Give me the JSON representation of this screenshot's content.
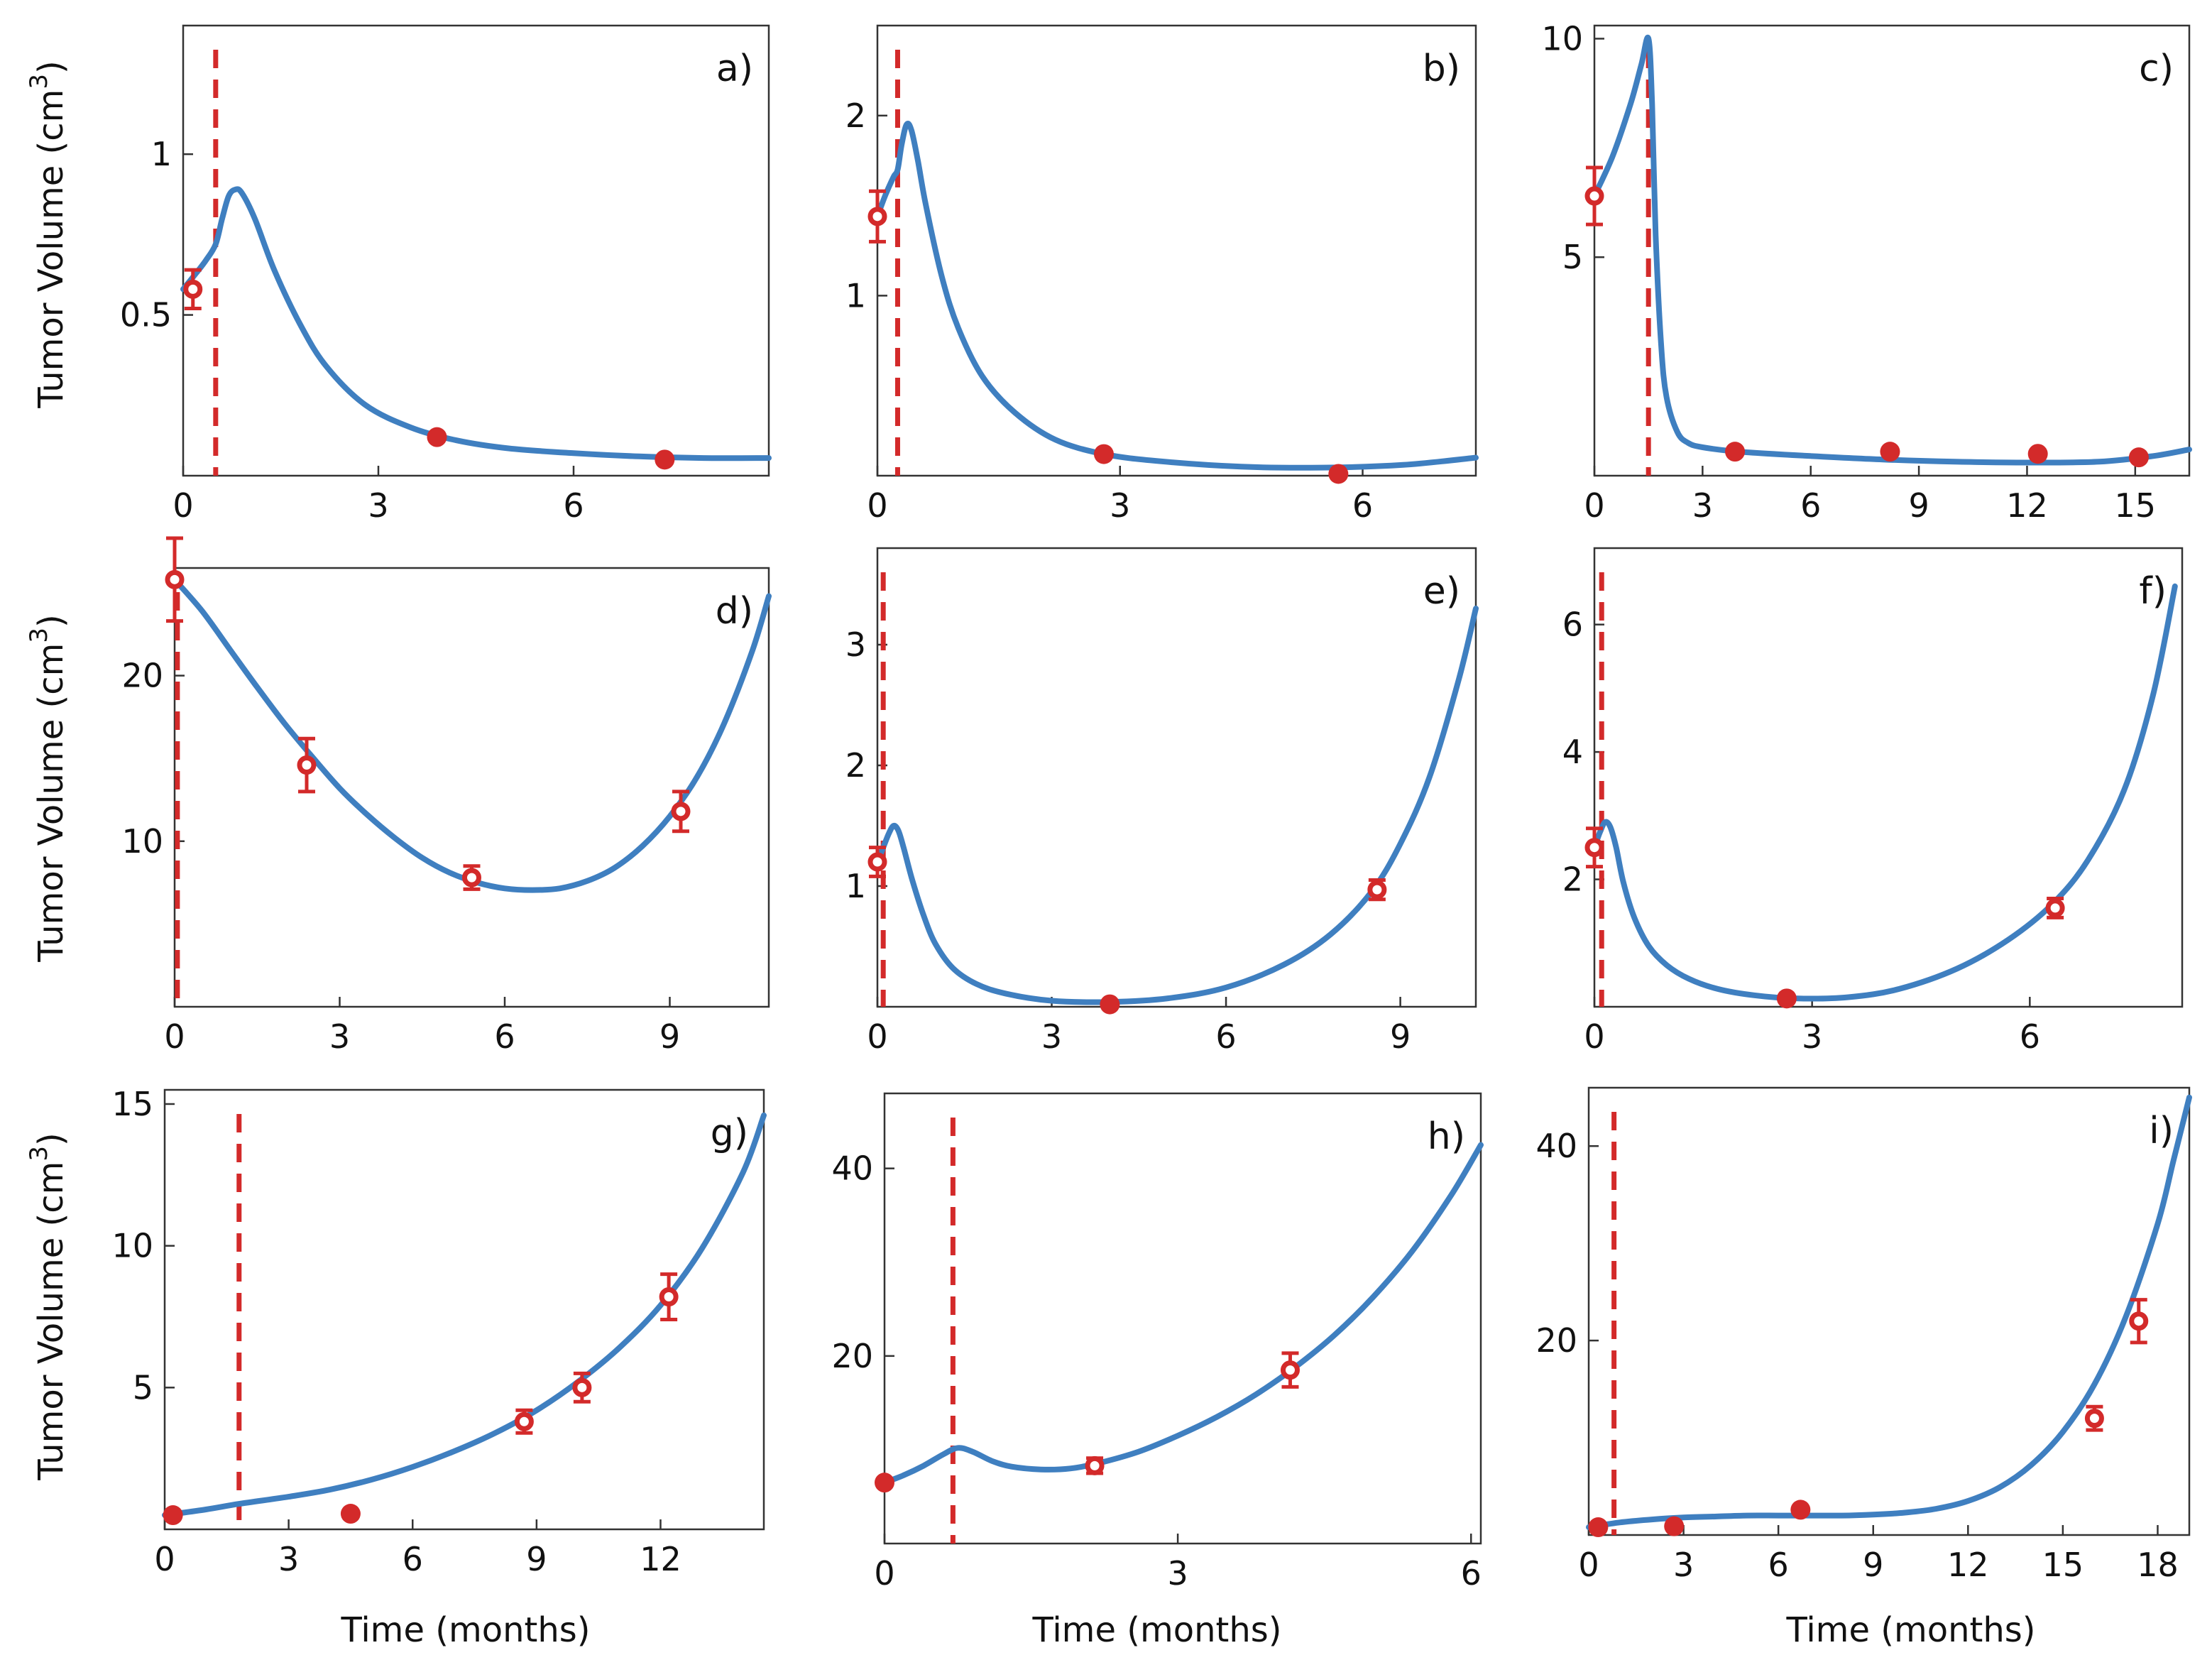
{
  "figure": {
    "ylabel_main": "Tumor Volume (cm",
    "ylabel_sup": "3",
    "ylabel_close": ")",
    "xlabel": "Time (months)"
  },
  "chart_data": [
    {
      "id": "a",
      "type": "line",
      "label": "a)",
      "xlim": [
        0,
        9
      ],
      "ylim": [
        0,
        1.4
      ],
      "xticks": [
        0,
        3,
        6
      ],
      "xtick_labels": [
        "0",
        "3",
        "6"
      ],
      "yticks": [
        0.5,
        1
      ],
      "ytick_labels": [
        "0.5",
        "1"
      ],
      "treatment_start": 0.5,
      "curve": {
        "x": [
          0,
          0.2,
          0.35,
          0.5,
          0.6,
          0.7,
          0.8,
          0.9,
          1.1,
          1.4,
          1.8,
          2.2,
          2.8,
          3.5,
          4.2,
          5,
          6,
          7,
          8,
          9
        ],
        "y": [
          0.58,
          0.63,
          0.67,
          0.72,
          0.8,
          0.87,
          0.89,
          0.88,
          0.8,
          0.64,
          0.47,
          0.34,
          0.22,
          0.15,
          0.11,
          0.085,
          0.07,
          0.06,
          0.055,
          0.055
        ]
      },
      "points": [
        {
          "x": 0.15,
          "y": 0.58,
          "err": 0.06
        },
        {
          "x": 3.9,
          "y": 0.12,
          "err": 0
        },
        {
          "x": 7.4,
          "y": 0.05,
          "err": 0
        }
      ]
    },
    {
      "id": "b",
      "type": "line",
      "label": "b)",
      "xlim": [
        0,
        7.4
      ],
      "ylim": [
        0,
        2.5
      ],
      "xticks": [
        0,
        3,
        6
      ],
      "xtick_labels": [
        "0",
        "3",
        "6"
      ],
      "yticks": [
        1,
        2
      ],
      "ytick_labels": [
        "1",
        "2"
      ],
      "treatment_start": 0.25,
      "curve": {
        "x": [
          0,
          0.1,
          0.2,
          0.25,
          0.3,
          0.36,
          0.42,
          0.5,
          0.6,
          0.8,
          1.0,
          1.3,
          1.7,
          2.2,
          2.8,
          3.5,
          4.5,
          5.5,
          6.5,
          7.4
        ],
        "y": [
          1.44,
          1.56,
          1.66,
          1.7,
          1.84,
          1.95,
          1.92,
          1.75,
          1.5,
          1.1,
          0.82,
          0.55,
          0.35,
          0.2,
          0.12,
          0.08,
          0.05,
          0.045,
          0.06,
          0.1
        ]
      },
      "points": [
        {
          "x": 0,
          "y": 1.44,
          "err": 0.14
        },
        {
          "x": 2.8,
          "y": 0.12,
          "err": 0
        },
        {
          "x": 5.7,
          "y": 0.01,
          "err": 0
        }
      ]
    },
    {
      "id": "c",
      "type": "line",
      "label": "c)",
      "xlim": [
        0,
        16.5
      ],
      "ylim": [
        0,
        10.3
      ],
      "xticks": [
        0,
        3,
        6,
        9,
        12,
        15
      ],
      "xtick_labels": [
        "0",
        "3",
        "6",
        "9",
        "12",
        "15"
      ],
      "yticks": [
        5,
        10
      ],
      "ytick_labels": [
        "5",
        "10"
      ],
      "treatment_start": 1.5,
      "curve": {
        "x": [
          0,
          0.5,
          1.0,
          1.3,
          1.5,
          1.6,
          1.7,
          1.85,
          2.0,
          2.3,
          2.6,
          3.0,
          4.0,
          6.0,
          8.0,
          10.0,
          12.0,
          14.0,
          15.5,
          16.5
        ],
        "y": [
          6.4,
          7.3,
          8.5,
          9.4,
          10,
          8.5,
          5.5,
          3.0,
          1.8,
          1.0,
          0.75,
          0.65,
          0.55,
          0.45,
          0.37,
          0.32,
          0.3,
          0.32,
          0.45,
          0.6
        ]
      },
      "points": [
        {
          "x": 0,
          "y": 6.4,
          "err": 0.65
        },
        {
          "x": 3.9,
          "y": 0.55,
          "err": 0
        },
        {
          "x": 8.2,
          "y": 0.55,
          "err": 0
        },
        {
          "x": 12.3,
          "y": 0.5,
          "err": 0
        },
        {
          "x": 15.1,
          "y": 0.42,
          "err": 0
        }
      ]
    },
    {
      "id": "d",
      "type": "line",
      "label": "d)",
      "xlim": [
        0,
        10.8
      ],
      "ylim": [
        0,
        26.5
      ],
      "xticks": [
        0,
        3,
        6,
        9
      ],
      "xtick_labels": [
        "0",
        "3",
        "6",
        "9"
      ],
      "yticks": [
        10,
        20
      ],
      "ytick_labels": [
        "10",
        "20"
      ],
      "treatment_start": 0.05,
      "curve": {
        "x": [
          0,
          0.5,
          1.0,
          1.5,
          2.0,
          2.5,
          3.0,
          3.5,
          4.0,
          4.5,
          5.0,
          5.5,
          6.0,
          6.5,
          7.0,
          7.5,
          8.0,
          8.5,
          9.0,
          9.5,
          10.0,
          10.5,
          10.8
        ],
        "y": [
          25.8,
          23.9,
          21.6,
          19.3,
          17.1,
          15.1,
          13.2,
          11.6,
          10.2,
          9.0,
          8.1,
          7.5,
          7.15,
          7.05,
          7.15,
          7.6,
          8.4,
          9.7,
          11.5,
          13.9,
          17.2,
          21.5,
          24.8
        ]
      },
      "points": [
        {
          "x": 0,
          "y": 25.8,
          "err": 2.5
        },
        {
          "x": 2.4,
          "y": 14.6,
          "err": 1.6
        },
        {
          "x": 5.4,
          "y": 7.8,
          "err": 0.7
        },
        {
          "x": 9.2,
          "y": 11.8,
          "err": 1.2
        }
      ]
    },
    {
      "id": "e",
      "type": "line",
      "label": "e)",
      "xlim": [
        0,
        10.3
      ],
      "ylim": [
        0,
        3.8
      ],
      "xticks": [
        0,
        3,
        6,
        9
      ],
      "xtick_labels": [
        "0",
        "3",
        "6",
        "9"
      ],
      "yticks": [
        1,
        2,
        3
      ],
      "ytick_labels": [
        "1",
        "2",
        "3"
      ],
      "treatment_start": 0.1,
      "curve": {
        "x": [
          0,
          0.1,
          0.2,
          0.28,
          0.36,
          0.45,
          0.6,
          0.8,
          1.0,
          1.3,
          1.7,
          2.2,
          3.0,
          4.0,
          5.0,
          6.0,
          7.0,
          7.8,
          8.5,
          9.0,
          9.5,
          10.0,
          10.3
        ],
        "y": [
          1.2,
          1.32,
          1.44,
          1.5,
          1.46,
          1.32,
          1.05,
          0.75,
          0.52,
          0.32,
          0.19,
          0.11,
          0.05,
          0.04,
          0.07,
          0.16,
          0.35,
          0.6,
          0.95,
          1.35,
          1.9,
          2.7,
          3.3
        ]
      },
      "points": [
        {
          "x": 0,
          "y": 1.2,
          "err": 0.12
        },
        {
          "x": 4.0,
          "y": 0.02,
          "err": 0
        },
        {
          "x": 8.6,
          "y": 0.97,
          "err": 0.08
        }
      ]
    },
    {
      "id": "f",
      "type": "line",
      "label": "f)",
      "xlim": [
        0,
        8.1
      ],
      "ylim": [
        0,
        7.2
      ],
      "xticks": [
        0,
        3,
        6
      ],
      "xtick_labels": [
        "0",
        "3",
        "6"
      ],
      "yticks": [
        2,
        4,
        6
      ],
      "ytick_labels": [
        "2",
        "4",
        "6"
      ],
      "treatment_start": 0.1,
      "curve": {
        "x": [
          0,
          0.08,
          0.15,
          0.22,
          0.3,
          0.4,
          0.55,
          0.75,
          1.0,
          1.3,
          1.7,
          2.2,
          2.8,
          3.5,
          4.2,
          5.0,
          5.7,
          6.3,
          6.8,
          7.3,
          7.7,
          8.0
        ],
        "y": [
          2.5,
          2.75,
          2.9,
          2.82,
          2.5,
          1.95,
          1.4,
          0.95,
          0.65,
          0.44,
          0.28,
          0.18,
          0.13,
          0.15,
          0.28,
          0.6,
          1.05,
          1.6,
          2.3,
          3.4,
          4.9,
          6.6
        ]
      },
      "points": [
        {
          "x": 0,
          "y": 2.5,
          "err": 0.3
        },
        {
          "x": 2.65,
          "y": 0.13,
          "err": 0
        },
        {
          "x": 6.35,
          "y": 1.55,
          "err": 0.15
        }
      ]
    },
    {
      "id": "g",
      "type": "line",
      "label": "g)",
      "xlim": [
        0,
        14.5
      ],
      "ylim": [
        0,
        15.5
      ],
      "xticks": [
        0,
        3,
        6,
        9,
        12
      ],
      "xtick_labels": [
        "0",
        "3",
        "6",
        "9",
        "12"
      ],
      "yticks": [
        5,
        10,
        15
      ],
      "ytick_labels": [
        "5",
        "10",
        "15"
      ],
      "treatment_start": 1.8,
      "curve": {
        "x": [
          0,
          1.0,
          1.8,
          3.0,
          4.0,
          5.0,
          6.0,
          7.0,
          8.0,
          9.0,
          10.0,
          11.0,
          12.0,
          13.0,
          14.0,
          14.5
        ],
        "y": [
          0.5,
          0.7,
          0.9,
          1.15,
          1.4,
          1.75,
          2.2,
          2.75,
          3.4,
          4.2,
          5.2,
          6.4,
          7.9,
          9.9,
          12.6,
          14.6
        ]
      },
      "points": [
        {
          "x": 0.2,
          "y": 0.5,
          "err": 0
        },
        {
          "x": 4.5,
          "y": 0.55,
          "err": 0
        },
        {
          "x": 8.7,
          "y": 3.8,
          "err": 0.4
        },
        {
          "x": 10.1,
          "y": 5.0,
          "err": 0.5
        },
        {
          "x": 12.2,
          "y": 8.2,
          "err": 0.8
        }
      ]
    },
    {
      "id": "h",
      "type": "line",
      "label": "h)",
      "xlim": [
        0,
        6.1
      ],
      "ylim": [
        0,
        48
      ],
      "xticks": [
        0,
        3,
        6
      ],
      "xtick_labels": [
        "0",
        "3",
        "6"
      ],
      "yticks": [
        20,
        40
      ],
      "ytick_labels": [
        "20",
        "40"
      ],
      "treatment_start": 0.7,
      "curve": {
        "x": [
          0,
          0.2,
          0.4,
          0.6,
          0.75,
          0.9,
          1.1,
          1.3,
          1.6,
          1.9,
          2.2,
          2.6,
          3.0,
          3.4,
          3.8,
          4.2,
          4.6,
          5.0,
          5.4,
          5.8,
          6.1
        ],
        "y": [
          6.5,
          7.3,
          8.3,
          9.5,
          10.2,
          9.8,
          8.8,
          8.2,
          7.9,
          8.0,
          8.6,
          9.8,
          11.5,
          13.5,
          15.9,
          18.8,
          22.2,
          26.3,
          31.2,
          37.2,
          42.5
        ]
      },
      "points": [
        {
          "x": 0,
          "y": 6.5,
          "err": 0
        },
        {
          "x": 2.15,
          "y": 8.3,
          "err": 0.8
        },
        {
          "x": 4.15,
          "y": 18.5,
          "err": 1.8
        }
      ]
    },
    {
      "id": "i",
      "type": "line",
      "label": "i)",
      "xlim": [
        0,
        19
      ],
      "ylim": [
        0,
        46
      ],
      "xticks": [
        0,
        3,
        6,
        9,
        12,
        15,
        18
      ],
      "xtick_labels": [
        "0",
        "3",
        "6",
        "9",
        "12",
        "15",
        "18"
      ],
      "yticks": [
        20,
        40
      ],
      "ytick_labels": [
        "20",
        "40"
      ],
      "treatment_start": 0.8,
      "curve": {
        "x": [
          0,
          1,
          2,
          3,
          4,
          5,
          6,
          7,
          8,
          9,
          10,
          11,
          12,
          13,
          14,
          15,
          16,
          17,
          18,
          18.5,
          19
        ],
        "y": [
          0.8,
          1.3,
          1.6,
          1.8,
          1.9,
          2.0,
          2.0,
          2.0,
          2.0,
          2.1,
          2.3,
          2.7,
          3.5,
          4.9,
          7.2,
          10.6,
          15.5,
          22.5,
          32,
          38.5,
          45
        ]
      },
      "points": [
        {
          "x": 0.3,
          "y": 0.8,
          "err": 0
        },
        {
          "x": 2.7,
          "y": 0.9,
          "err": 0
        },
        {
          "x": 6.7,
          "y": 2.6,
          "err": 0
        },
        {
          "x": 16.0,
          "y": 12.0,
          "err": 1.2
        },
        {
          "x": 17.4,
          "y": 22.0,
          "err": 2.2
        }
      ]
    }
  ]
}
